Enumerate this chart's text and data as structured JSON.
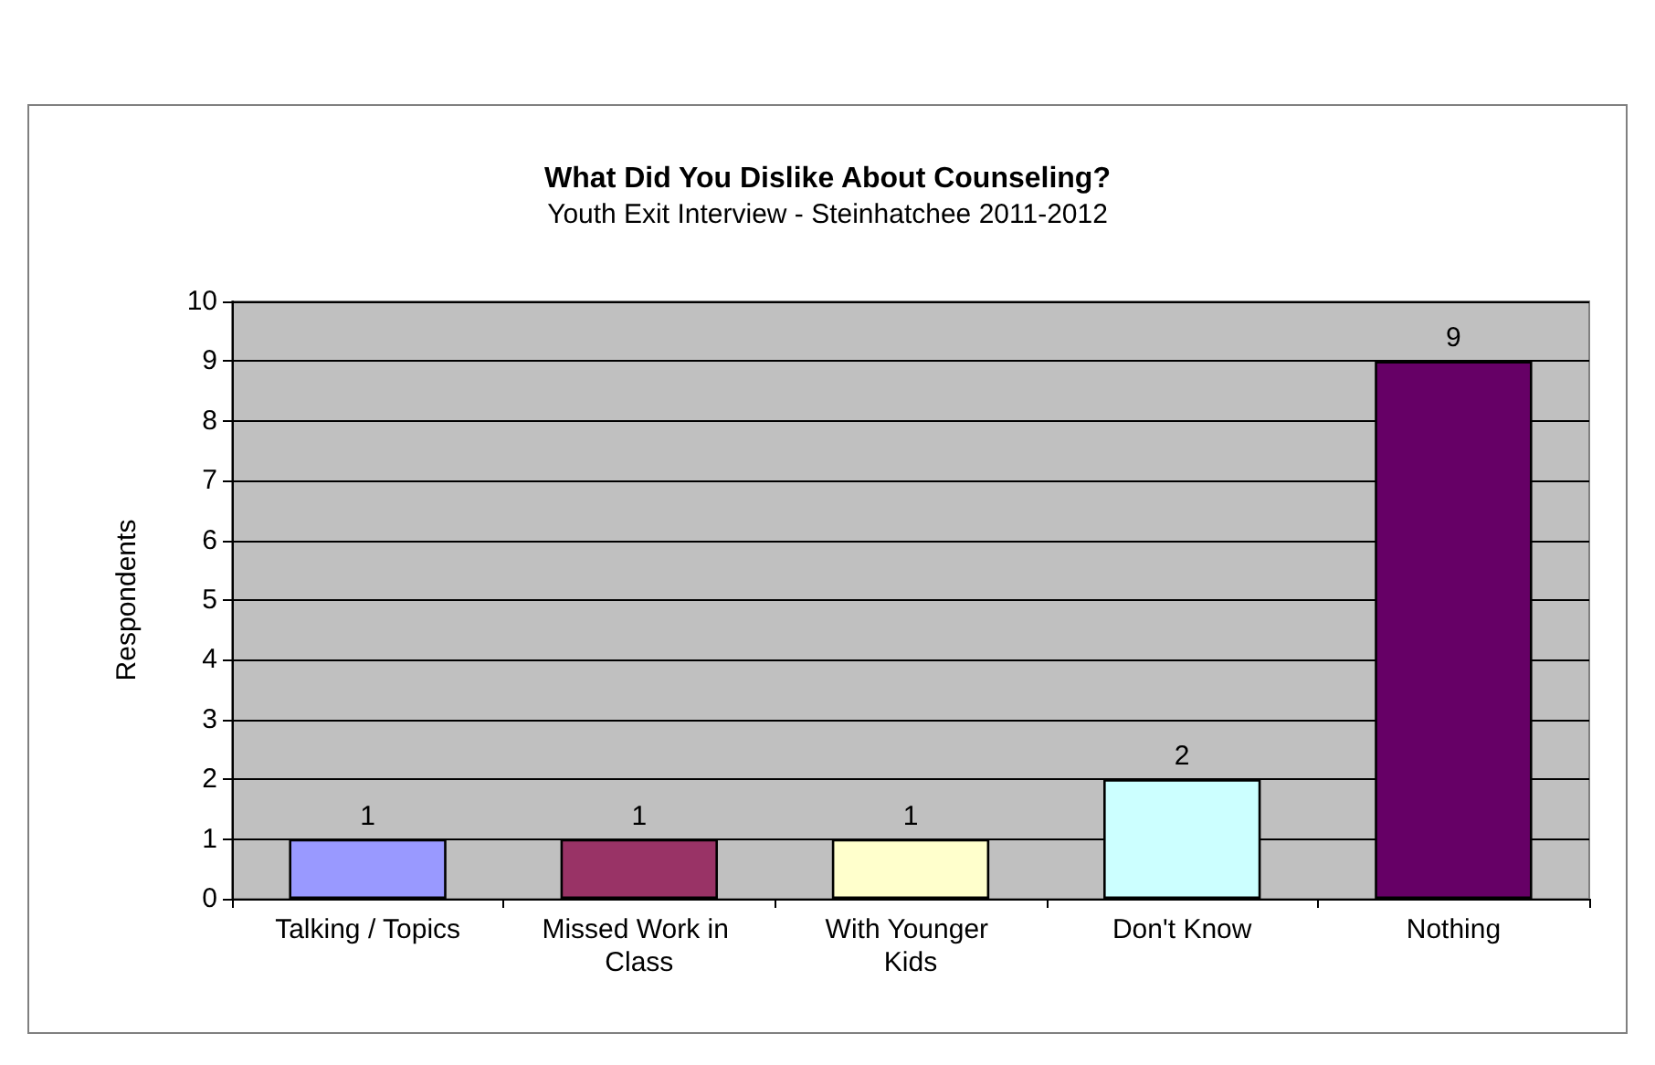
{
  "chart_data": {
    "type": "bar",
    "title": "What Did You Dislike About Counseling?",
    "subtitle": "Youth Exit Interview - Steinhatchee 2011-2012",
    "ylabel": "Respondents",
    "categories": [
      "Talking / Topics",
      "Missed Work in Class",
      "With Younger Kids",
      "Don't Know",
      "Nothing"
    ],
    "values": [
      1,
      1,
      1,
      2,
      9
    ],
    "colors": [
      "#9999ff",
      "#993366",
      "#ffffcc",
      "#ccffff",
      "#660066"
    ],
    "ylim": [
      0,
      10
    ],
    "yticks": [
      0,
      1,
      2,
      3,
      4,
      5,
      6,
      7,
      8,
      9,
      10
    ],
    "grid": "y",
    "data_labels": true
  }
}
